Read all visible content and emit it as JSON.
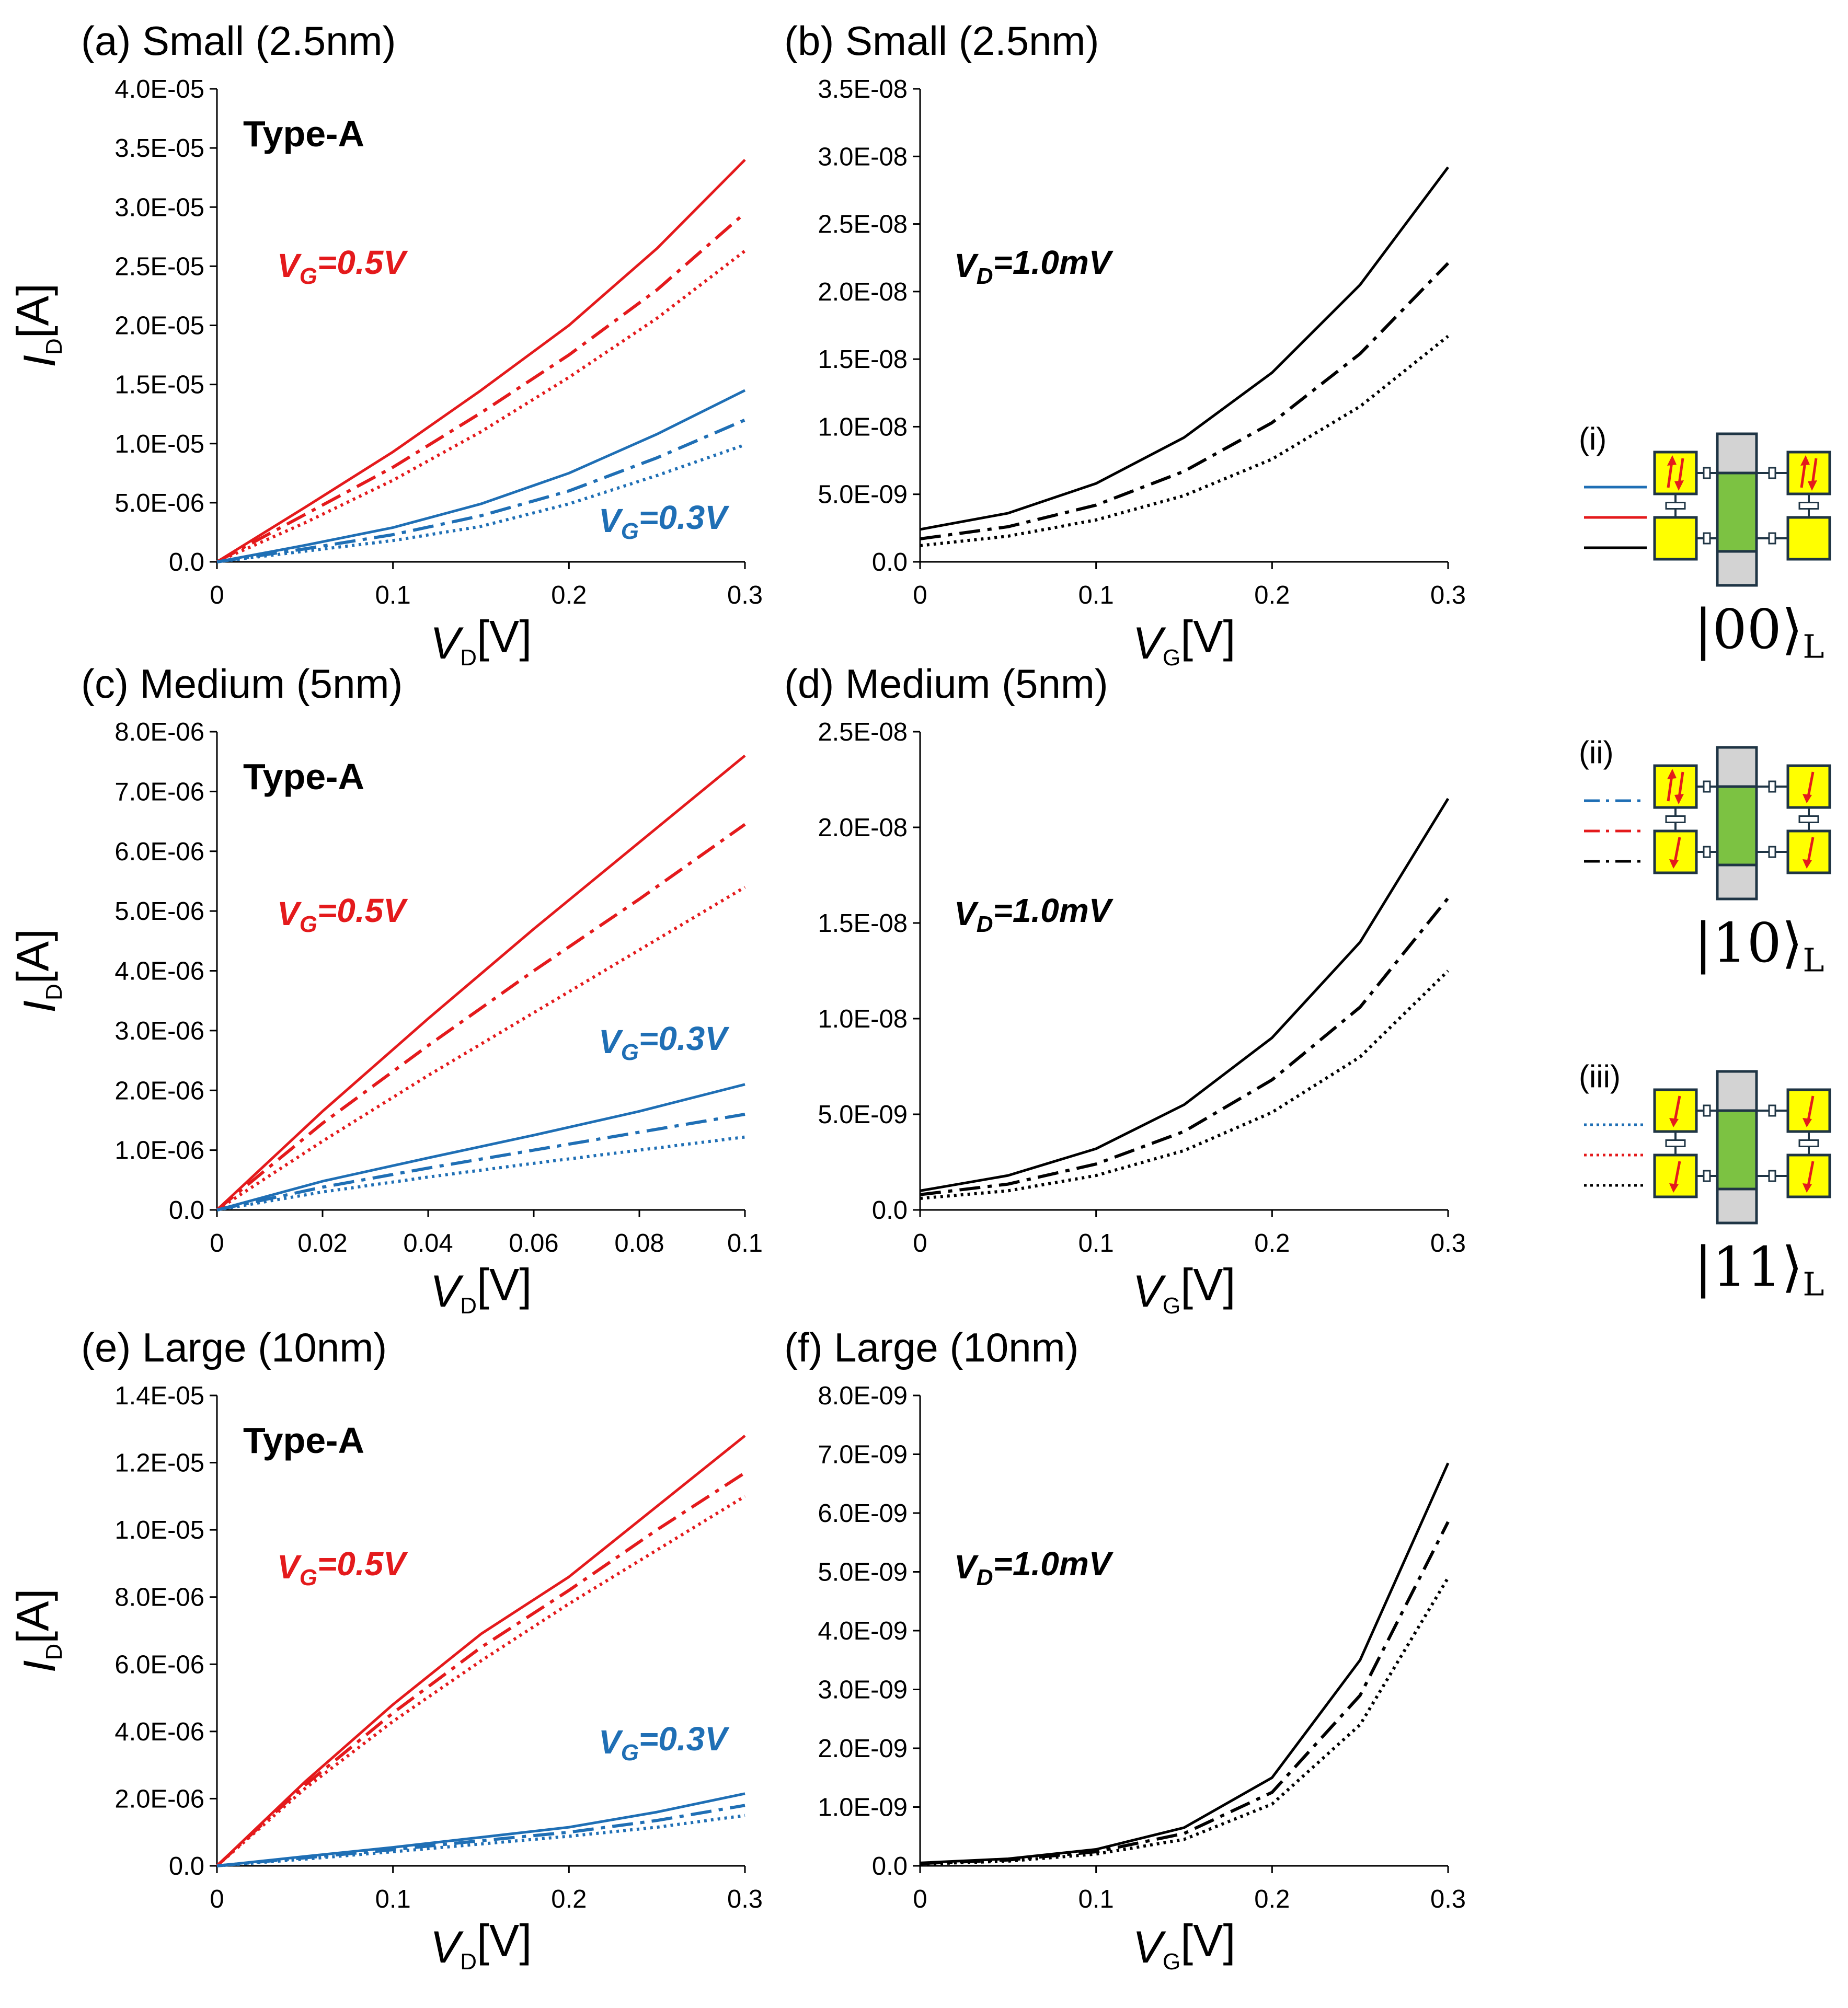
{
  "colors": {
    "red": "#e41a1c",
    "blue": "#1f6fb5",
    "black": "#000000",
    "dot_yellow": "#ffff00",
    "center_green": "#7cc242",
    "center_gray": "#d3d3d3"
  },
  "chart_data": [
    {
      "id": "a",
      "type": "line",
      "title": "(a) Small (2.5nm)",
      "xlabel": "V_D[V]",
      "ylabel": "I_D[A]",
      "annotation": "Type-A",
      "xlim": [
        0,
        0.3
      ],
      "ylim": [
        0,
        4e-05
      ],
      "xticks": [
        "0",
        "0.1",
        "0.2",
        "0.3"
      ],
      "yticks": [
        "0.0",
        "5.0E-06",
        "1.0E-05",
        "1.5E-05",
        "2.0E-05",
        "2.5E-05",
        "3.0E-05",
        "3.5E-05",
        "4.0E-05"
      ],
      "labels": [
        {
          "var": "V",
          "sub": "G",
          "value": "=0.5V",
          "color": "red"
        },
        {
          "var": "V",
          "sub": "G",
          "value": "=0.3V",
          "color": "blue"
        }
      ],
      "x": [
        0,
        0.05,
        0.1,
        0.15,
        0.2,
        0.25,
        0.3
      ],
      "series": [
        {
          "name": "|00> VG=0.5V",
          "color": "red",
          "style": "solid",
          "values": [
            0,
            4.6e-06,
            9.3e-06,
            1.45e-05,
            2e-05,
            2.65e-05,
            3.4e-05
          ]
        },
        {
          "name": "|10> VG=0.5V",
          "color": "red",
          "style": "dashdot",
          "values": [
            0,
            4e-06,
            8e-06,
            1.26e-05,
            1.75e-05,
            2.3e-05,
            2.95e-05
          ]
        },
        {
          "name": "|11> VG=0.5V",
          "color": "red",
          "style": "dotted",
          "values": [
            0,
            3.3e-06,
            6.9e-06,
            1.1e-05,
            1.56e-05,
            2.06e-05,
            2.63e-05
          ]
        },
        {
          "name": "|00> VG=0.3V",
          "color": "blue",
          "style": "solid",
          "values": [
            0,
            1.4e-06,
            2.9e-06,
            4.9e-06,
            7.5e-06,
            1.08e-05,
            1.45e-05
          ]
        },
        {
          "name": "|10> VG=0.3V",
          "color": "blue",
          "style": "dashdot",
          "values": [
            0,
            1.1e-06,
            2.3e-06,
            3.9e-06,
            6e-06,
            8.8e-06,
            1.2e-05
          ]
        },
        {
          "name": "|11> VG=0.3V",
          "color": "blue",
          "style": "dotted",
          "values": [
            0,
            9e-07,
            1.8e-06,
            3e-06,
            4.9e-06,
            7.3e-06,
            9.9e-06
          ]
        }
      ]
    },
    {
      "id": "b",
      "type": "line",
      "title": "(b) Small (2.5nm)",
      "xlabel": "V_G[V]",
      "ylabel": "",
      "annotation": "",
      "xlim": [
        0,
        0.3
      ],
      "ylim": [
        0,
        3.5e-08
      ],
      "xticks": [
        "0",
        "0.1",
        "0.2",
        "0.3"
      ],
      "yticks": [
        "0.0",
        "5.0E-09",
        "1.0E-08",
        "1.5E-08",
        "2.0E-08",
        "2.5E-08",
        "3.0E-08",
        "3.5E-08"
      ],
      "labels": [
        {
          "var": "V",
          "sub": "D",
          "value": "=1.0mV",
          "color": "black"
        }
      ],
      "x": [
        0,
        0.05,
        0.1,
        0.15,
        0.2,
        0.25,
        0.3
      ],
      "series": [
        {
          "name": "|00>",
          "color": "black",
          "style": "solid",
          "values": [
            2.4e-09,
            3.6e-09,
            5.8e-09,
            9.2e-09,
            1.4e-08,
            2.05e-08,
            2.92e-08
          ]
        },
        {
          "name": "|10>",
          "color": "black",
          "style": "dashdot",
          "values": [
            1.7e-09,
            2.6e-09,
            4.2e-09,
            6.7e-09,
            1.03e-08,
            1.54e-08,
            2.21e-08
          ]
        },
        {
          "name": "|11>",
          "color": "black",
          "style": "dotted",
          "values": [
            1.2e-09,
            1.9e-09,
            3.1e-09,
            4.9e-09,
            7.6e-09,
            1.15e-08,
            1.67e-08
          ]
        }
      ]
    },
    {
      "id": "c",
      "type": "line",
      "title": "(c) Medium (5nm)",
      "xlabel": "V_D[V]",
      "ylabel": "I_D[A]",
      "annotation": "Type-A",
      "xlim": [
        0,
        0.1
      ],
      "ylim": [
        0,
        8e-06
      ],
      "xticks": [
        "0",
        "0.02",
        "0.04",
        "0.06",
        "0.08",
        "0.1"
      ],
      "yticks": [
        "0.0",
        "1.0E-06",
        "2.0E-06",
        "3.0E-06",
        "4.0E-06",
        "5.0E-06",
        "6.0E-06",
        "7.0E-06",
        "8.0E-06"
      ],
      "labels": [
        {
          "var": "V",
          "sub": "G",
          "value": "=0.5V",
          "color": "red"
        },
        {
          "var": "V",
          "sub": "G",
          "value": "=0.3V",
          "color": "blue"
        }
      ],
      "x": [
        0,
        0.02,
        0.04,
        0.06,
        0.08,
        0.1
      ],
      "series": [
        {
          "name": "|00> VG=0.5V",
          "color": "red",
          "style": "solid",
          "values": [
            0,
            1.65e-06,
            3.2e-06,
            4.7e-06,
            6.15e-06,
            7.6e-06
          ]
        },
        {
          "name": "|10> VG=0.5V",
          "color": "red",
          "style": "dashdot",
          "values": [
            0,
            1.45e-06,
            2.75e-06,
            4e-06,
            5.2e-06,
            6.45e-06
          ]
        },
        {
          "name": "|11> VG=0.5V",
          "color": "red",
          "style": "dotted",
          "values": [
            0,
            1.15e-06,
            2.25e-06,
            3.3e-06,
            4.35e-06,
            5.4e-06
          ]
        },
        {
          "name": "|00> VG=0.3V",
          "color": "blue",
          "style": "solid",
          "values": [
            0,
            4.8e-07,
            8.7e-07,
            1.25e-06,
            1.65e-06,
            2.1e-06
          ]
        },
        {
          "name": "|10> VG=0.3V",
          "color": "blue",
          "style": "dashdot",
          "values": [
            0,
            3.8e-07,
            7e-07,
            1e-06,
            1.3e-06,
            1.6e-06
          ]
        },
        {
          "name": "|11> VG=0.3V",
          "color": "blue",
          "style": "dotted",
          "values": [
            0,
            3e-07,
            5.5e-07,
            7.8e-07,
            1e-06,
            1.22e-06
          ]
        }
      ]
    },
    {
      "id": "d",
      "type": "line",
      "title": "(d) Medium (5nm)",
      "xlabel": "V_G[V]",
      "ylabel": "",
      "annotation": "",
      "xlim": [
        0,
        0.3
      ],
      "ylim": [
        0,
        2.5e-08
      ],
      "xticks": [
        "0",
        "0.1",
        "0.2",
        "0.3"
      ],
      "yticks": [
        "0.0",
        "5.0E-09",
        "1.0E-08",
        "1.5E-08",
        "2.0E-08",
        "2.5E-08"
      ],
      "labels": [
        {
          "var": "V",
          "sub": "D",
          "value": "=1.0mV",
          "color": "black"
        }
      ],
      "x": [
        0,
        0.05,
        0.1,
        0.15,
        0.2,
        0.25,
        0.3
      ],
      "series": [
        {
          "name": "|00>",
          "color": "black",
          "style": "solid",
          "values": [
            1e-09,
            1.8e-09,
            3.2e-09,
            5.5e-09,
            9e-09,
            1.4e-08,
            2.15e-08
          ]
        },
        {
          "name": "|10>",
          "color": "black",
          "style": "dashdot",
          "values": [
            8e-10,
            1.35e-09,
            2.4e-09,
            4.1e-09,
            6.8e-09,
            1.06e-08,
            1.63e-08
          ]
        },
        {
          "name": "|11>",
          "color": "black",
          "style": "dotted",
          "values": [
            6e-10,
            1e-09,
            1.8e-09,
            3.1e-09,
            5.1e-09,
            8e-09,
            1.25e-08
          ]
        }
      ]
    },
    {
      "id": "e",
      "type": "line",
      "title": "(e) Large (10nm)",
      "xlabel": "V_D[V]",
      "ylabel": "I_D[A]",
      "annotation": "Type-A",
      "xlim": [
        0,
        0.3
      ],
      "ylim": [
        0,
        1.4e-05
      ],
      "xticks": [
        "0",
        "0.1",
        "0.2",
        "0.3"
      ],
      "yticks": [
        "0.0",
        "2.0E-06",
        "4.0E-06",
        "6.0E-06",
        "8.0E-06",
        "1.0E-05",
        "1.2E-05",
        "1.4E-05"
      ],
      "labels": [
        {
          "var": "V",
          "sub": "G",
          "value": "=0.5V",
          "color": "red"
        },
        {
          "var": "V",
          "sub": "G",
          "value": "=0.3V",
          "color": "blue"
        }
      ],
      "x": [
        0,
        0.05,
        0.1,
        0.15,
        0.2,
        0.25,
        0.3
      ],
      "series": [
        {
          "name": "|00> VG=0.5V",
          "color": "red",
          "style": "solid",
          "values": [
            0,
            2.5e-06,
            4.8e-06,
            6.9e-06,
            8.6e-06,
            1.07e-05,
            1.28e-05
          ]
        },
        {
          "name": "|10> VG=0.5V",
          "color": "red",
          "style": "dashdot",
          "values": [
            0,
            2.4e-06,
            4.55e-06,
            6.5e-06,
            8.2e-06,
            1e-05,
            1.17e-05
          ]
        },
        {
          "name": "|11> VG=0.5V",
          "color": "red",
          "style": "dotted",
          "values": [
            0,
            2.3e-06,
            4.3e-06,
            6.1e-06,
            7.8e-06,
            9.4e-06,
            1.1e-05
          ]
        },
        {
          "name": "|00> VG=0.3V",
          "color": "blue",
          "style": "solid",
          "values": [
            0,
            2.8e-07,
            5.5e-07,
            8.5e-07,
            1.15e-06,
            1.6e-06,
            2.15e-06
          ]
        },
        {
          "name": "|10> VG=0.3V",
          "color": "blue",
          "style": "dashdot",
          "values": [
            0,
            2.4e-07,
            4.8e-07,
            7.5e-07,
            1e-06,
            1.35e-06,
            1.8e-06
          ]
        },
        {
          "name": "|11> VG=0.3V",
          "color": "blue",
          "style": "dotted",
          "values": [
            0,
            2e-07,
            4.2e-07,
            6.5e-07,
            8.8e-07,
            1.15e-06,
            1.5e-06
          ]
        }
      ]
    },
    {
      "id": "f",
      "type": "line",
      "title": "(f) Large (10nm)",
      "xlabel": "V_G[V]",
      "ylabel": "",
      "annotation": "",
      "xlim": [
        0,
        0.3
      ],
      "ylim": [
        0,
        8e-09
      ],
      "xticks": [
        "0",
        "0.1",
        "0.2",
        "0.3"
      ],
      "yticks": [
        "0.0",
        "1.0E-09",
        "2.0E-09",
        "3.0E-09",
        "4.0E-09",
        "5.0E-09",
        "6.0E-09",
        "7.0E-09",
        "8.0E-09"
      ],
      "labels": [
        {
          "var": "V",
          "sub": "D",
          "value": "=1.0mV",
          "color": "black"
        }
      ],
      "x": [
        0,
        0.05,
        0.1,
        0.15,
        0.2,
        0.25,
        0.3
      ],
      "series": [
        {
          "name": "|00>",
          "color": "black",
          "style": "solid",
          "values": [
            5e-11,
            1.2e-10,
            2.8e-10,
            6.5e-10,
            1.5e-09,
            3.5e-09,
            6.85e-09
          ]
        },
        {
          "name": "|10>",
          "color": "black",
          "style": "dashdot",
          "values": [
            4e-11,
            1e-10,
            2.4e-10,
            5.5e-10,
            1.25e-09,
            2.9e-09,
            5.85e-09
          ]
        },
        {
          "name": "|11>",
          "color": "black",
          "style": "dotted",
          "values": [
            3e-11,
            8e-11,
            2e-10,
            4.5e-10,
            1.05e-09,
            2.4e-09,
            4.9e-09
          ]
        }
      ]
    }
  ],
  "legend": [
    {
      "id": "i",
      "label": "(i)",
      "style": "solid",
      "ket": "|00⟩",
      "ket_sub": "L",
      "arrows": [
        "updown",
        "",
        "updown",
        ""
      ]
    },
    {
      "id": "ii",
      "label": "(ii)",
      "style": "dashdot",
      "ket": "|10⟩",
      "ket_sub": "L",
      "arrows": [
        "updown",
        "down",
        "down",
        "down"
      ]
    },
    {
      "id": "iii",
      "label": "(iii)",
      "style": "dotted",
      "ket": "|11⟩",
      "ket_sub": "L",
      "arrows": [
        "down",
        "down",
        "down",
        "down"
      ]
    }
  ]
}
